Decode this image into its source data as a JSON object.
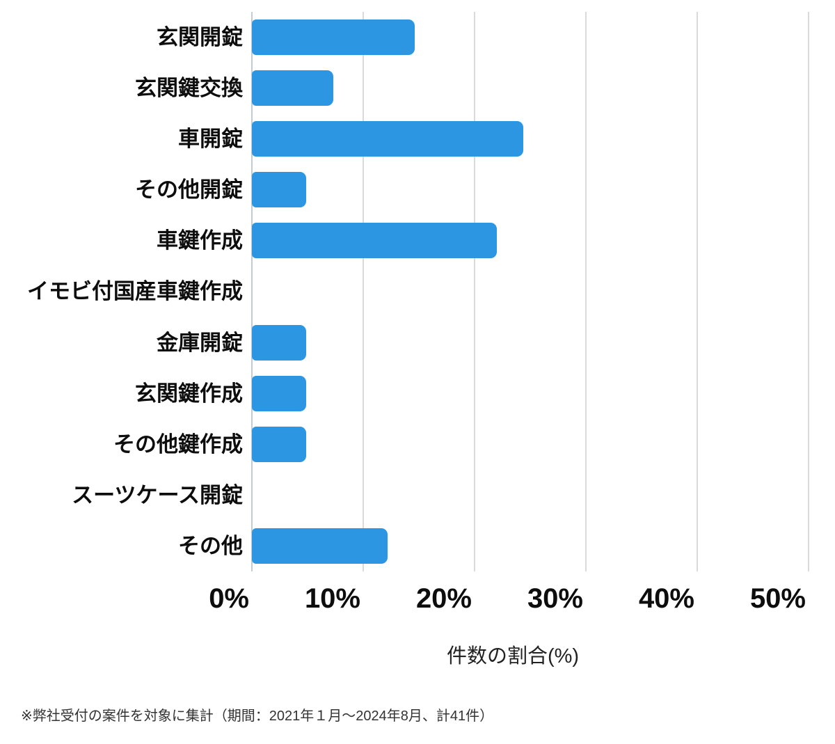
{
  "chart_data": {
    "type": "bar",
    "orientation": "horizontal",
    "title": "",
    "xlabel": "件数の割合(%)",
    "categories": [
      "玄関開錠",
      "玄関鍵交換",
      "車開錠",
      "その他開錠",
      "車鍵作成",
      "イモビ付国産車鍵作成",
      "金庫開錠",
      "玄関鍵作成",
      "その他鍵作成",
      "スーツケース開錠",
      "その他"
    ],
    "values": [
      14.6,
      7.3,
      24.4,
      4.9,
      22.0,
      0,
      4.9,
      4.9,
      4.9,
      0,
      12.2
    ],
    "x_ticks": [
      "0%",
      "10%",
      "20%",
      "30%",
      "40%",
      "50%"
    ],
    "xlim": [
      0,
      50
    ],
    "grid": true,
    "legend_position": "none",
    "bar_color": "#2d96e2",
    "gridline_color": "#dadada",
    "axis_line_color": "#c3ccd2"
  },
  "footnote": "※弊社受付の案件を対象に集計（期間：2021年１月〜2024年8月、計41件）"
}
